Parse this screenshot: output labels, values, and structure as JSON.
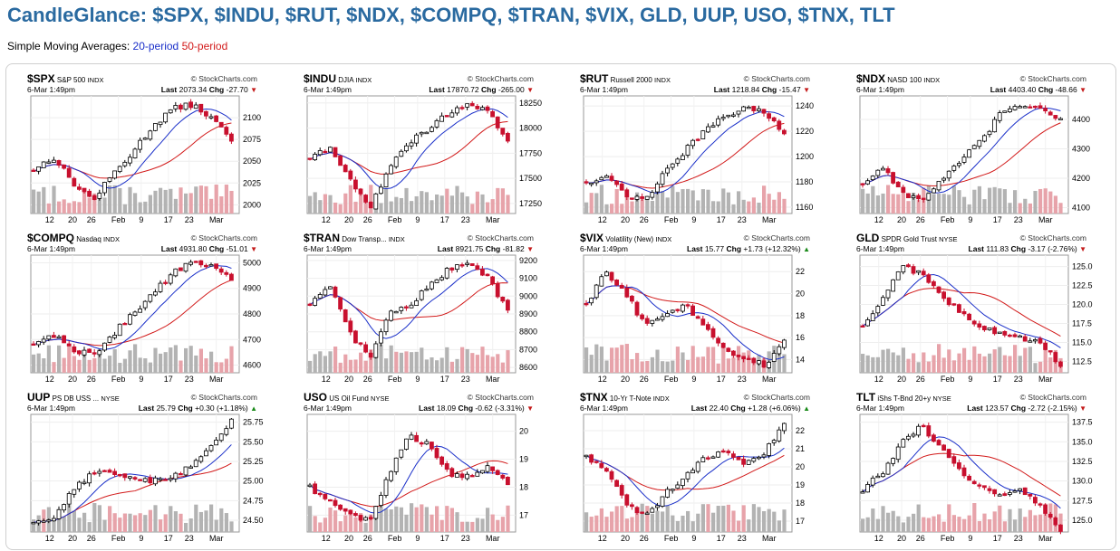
{
  "page": {
    "title": "CandleGlance: $SPX, $INDU, $RUT, $NDX, $COMPQ, $TRAN, $VIX, GLD, UUP, USO, $TNX, TLT",
    "subtitle_prefix": "Simple Moving Averages:",
    "sma_short": "20-period",
    "sma_long": "50-period"
  },
  "colors": {
    "sma20": "#1a2fc9",
    "sma50": "#d21a1a",
    "up": "#000000",
    "down": "#c8102e",
    "vol_up": "#b3b3b3",
    "vol_down": "#e7a3aa",
    "title": "#2a6aa0"
  },
  "brand": "StockCharts.com",
  "date_label": "6-Mar 1:49pm",
  "x_ticks": [
    "12",
    "20",
    "26",
    "Feb",
    "9",
    "17",
    "23",
    "Mar"
  ],
  "charts": [
    {
      "symbol": "$SPX",
      "name": "S&P 500",
      "exchange": "INDX",
      "last": "2073.34",
      "chg": "-27.70",
      "dir": "down",
      "yticks": [
        "2100",
        "2075",
        "2050",
        "2025",
        "2000"
      ],
      "ylim": [
        1990,
        2125
      ],
      "chart_data": {
        "type": "candlestick",
        "start": 2040,
        "end": 2073.34,
        "trend": [
          2040,
          2055,
          2025,
          2005,
          2035,
          2060,
          2090,
          2110,
          2115,
          2100,
          2073
        ]
      }
    },
    {
      "symbol": "$INDU",
      "name": "DJIA",
      "exchange": "INDX",
      "last": "17870.72",
      "chg": "-265.00",
      "dir": "down",
      "yticks": [
        "18250",
        "18000",
        "17750",
        "17500",
        "17250"
      ],
      "ylim": [
        17150,
        18320
      ],
      "chart_data": {
        "type": "candlestick",
        "start": 17700,
        "end": 17870.72,
        "trend": [
          17700,
          17800,
          17500,
          17200,
          17600,
          17850,
          18000,
          18150,
          18250,
          18150,
          17870
        ]
      }
    },
    {
      "symbol": "$RUT",
      "name": "Russell 2000",
      "exchange": "INDX",
      "last": "1218.84",
      "chg": "-15.47",
      "dir": "down",
      "yticks": [
        "1240",
        "1220",
        "1200",
        "1180",
        "1160"
      ],
      "ylim": [
        1155,
        1248
      ],
      "chart_data": {
        "type": "candlestick",
        "start": 1180,
        "end": 1218.84,
        "trend": [
          1180,
          1185,
          1170,
          1165,
          1190,
          1205,
          1220,
          1232,
          1238,
          1236,
          1218
        ]
      }
    },
    {
      "symbol": "$NDX",
      "name": "NASD 100",
      "exchange": "INDX",
      "last": "4403.40",
      "chg": "-48.66",
      "dir": "down",
      "yticks": [
        "4400",
        "4300",
        "4200",
        "4100"
      ],
      "ylim": [
        4080,
        4480
      ],
      "chart_data": {
        "type": "candlestick",
        "start": 4180,
        "end": 4403.4,
        "trend": [
          4180,
          4240,
          4150,
          4120,
          4200,
          4260,
          4330,
          4420,
          4450,
          4440,
          4403
        ]
      }
    },
    {
      "symbol": "$COMPQ",
      "name": "Nasdaq",
      "exchange": "INDX",
      "last": "4931.80",
      "chg": "-51.01",
      "dir": "down",
      "yticks": [
        "5000",
        "4900",
        "4800",
        "4700",
        "4600"
      ],
      "ylim": [
        4570,
        5030
      ],
      "chart_data": {
        "type": "candlestick",
        "start": 4680,
        "end": 4931.8,
        "trend": [
          4680,
          4720,
          4660,
          4640,
          4720,
          4800,
          4880,
          4960,
          5000,
          4990,
          4931
        ]
      }
    },
    {
      "symbol": "$TRAN",
      "name": "Dow Transp...",
      "exchange": "INDX",
      "last": "8921.75",
      "chg": "-81.82",
      "dir": "down",
      "yticks": [
        "9200",
        "9100",
        "9000",
        "8900",
        "8800",
        "8700",
        "8600"
      ],
      "ylim": [
        8570,
        9230
      ],
      "chart_data": {
        "type": "candlestick",
        "start": 8950,
        "end": 8921.75,
        "trend": [
          8950,
          9050,
          8800,
          8650,
          8900,
          8950,
          9050,
          9150,
          9200,
          9100,
          8921
        ]
      }
    },
    {
      "symbol": "$VIX",
      "name": "Volatility (New)",
      "exchange": "INDX",
      "last": "15.77",
      "chg": "+1.73 (+12.32%)",
      "dir": "up",
      "yticks": [
        "22",
        "20",
        "18",
        "16",
        "14"
      ],
      "ylim": [
        12.8,
        23.5
      ],
      "chart_data": {
        "type": "candlestick",
        "start": 19,
        "end": 15.77,
        "trend": [
          19,
          22,
          20,
          17,
          18,
          19,
          17,
          15,
          14,
          13.5,
          15.77
        ]
      }
    },
    {
      "symbol": "GLD",
      "name": "SPDR Gold Trust",
      "exchange": "NYSE",
      "last": "111.83",
      "chg": "-3.17 (-2.76%)",
      "dir": "down",
      "yticks": [
        "125.0",
        "122.5",
        "120.0",
        "117.5",
        "115.0",
        "112.5"
      ],
      "ylim": [
        111,
        126.5
      ],
      "chart_data": {
        "type": "candlestick",
        "start": 117,
        "end": 111.83,
        "trend": [
          117,
          121,
          125,
          124,
          121,
          119,
          117,
          116,
          115.5,
          115,
          111.83
        ]
      }
    },
    {
      "symbol": "UUP",
      "name": "PS DB USS ...",
      "exchange": "NYSE",
      "last": "25.79",
      "chg": "+0.30 (+1.18%)",
      "dir": "up",
      "yticks": [
        "25.75",
        "25.50",
        "25.25",
        "25.00",
        "24.75",
        "24.50"
      ],
      "ylim": [
        24.35,
        25.85
      ],
      "chart_data": {
        "type": "candlestick",
        "start": 24.45,
        "end": 25.79,
        "trend": [
          24.45,
          24.55,
          24.9,
          25.1,
          25.1,
          25.05,
          25.0,
          25.05,
          25.2,
          25.45,
          25.79
        ]
      }
    },
    {
      "symbol": "USO",
      "name": "US Oil Fund",
      "exchange": "NYSE",
      "last": "18.09",
      "chg": "-0.62 (-3.31%)",
      "dir": "down",
      "yticks": [
        "20",
        "19",
        "18",
        "17"
      ],
      "ylim": [
        16.4,
        20.6
      ],
      "chart_data": {
        "type": "candlestick",
        "start": 18,
        "end": 18.09,
        "trend": [
          18,
          17.5,
          17.0,
          16.8,
          18.5,
          19.8,
          19.5,
          18.5,
          18.4,
          18.7,
          18.09
        ]
      }
    },
    {
      "symbol": "$TNX",
      "name": "10-Yr T-Note",
      "exchange": "INDX",
      "last": "22.40",
      "chg": "+1.28 (+6.06%)",
      "dir": "up",
      "yticks": [
        "22",
        "21",
        "20",
        "19",
        "18",
        "17"
      ],
      "ylim": [
        16.4,
        22.9
      ],
      "chart_data": {
        "type": "candlestick",
        "start": 20.5,
        "end": 22.4,
        "trend": [
          20.5,
          19.8,
          18.0,
          17.2,
          18.5,
          19.5,
          20.5,
          21.0,
          20.2,
          20.8,
          22.4
        ]
      }
    },
    {
      "symbol": "TLT",
      "name": "iShs T-Bnd 20+y",
      "exchange": "NYSE",
      "last": "123.57",
      "chg": "-2.72 (-2.15%)",
      "dir": "down",
      "yticks": [
        "137.5",
        "135.0",
        "132.5",
        "130.0",
        "127.5",
        "125.0"
      ],
      "ylim": [
        123.5,
        138.5
      ],
      "chart_data": {
        "type": "candlestick",
        "start": 129,
        "end": 123.57,
        "trend": [
          129,
          131,
          135,
          137,
          134,
          131,
          129,
          128,
          129,
          127,
          123.57
        ]
      }
    }
  ]
}
